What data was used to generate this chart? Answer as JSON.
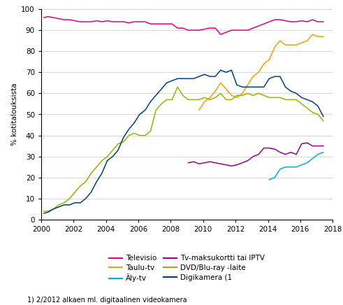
{
  "title": "",
  "ylabel": "% kotitalouksista",
  "xlabel": "",
  "footnote": "1) 2/2012 alkaen ml. digitaalinen videokamera",
  "ylim": [
    0,
    100
  ],
  "xlim": [
    2000,
    2018
  ],
  "xticks": [
    2000,
    2002,
    2004,
    2006,
    2008,
    2010,
    2012,
    2014,
    2016,
    2018
  ],
  "yticks": [
    0,
    10,
    20,
    30,
    40,
    50,
    60,
    70,
    80,
    90,
    100
  ],
  "series": {
    "Televisio": {
      "color": "#e8007f",
      "x": [
        2000.17,
        2000.42,
        2000.75,
        2001.08,
        2001.42,
        2001.75,
        2002.08,
        2002.42,
        2002.75,
        2003.08,
        2003.42,
        2003.75,
        2004.08,
        2004.42,
        2004.75,
        2005.08,
        2005.42,
        2005.75,
        2006.08,
        2006.42,
        2006.75,
        2007.08,
        2007.42,
        2007.75,
        2008.08,
        2008.42,
        2008.75,
        2009.08,
        2009.42,
        2009.75,
        2010.08,
        2010.42,
        2010.75,
        2011.08,
        2011.42,
        2011.75,
        2012.08,
        2012.42,
        2012.75,
        2013.08,
        2013.42,
        2013.75,
        2014.08,
        2014.42,
        2014.75,
        2015.08,
        2015.42,
        2015.75,
        2016.08,
        2016.42,
        2016.75,
        2017.08,
        2017.42
      ],
      "y": [
        96,
        96.5,
        96,
        95.5,
        95,
        95,
        94.5,
        94,
        94,
        94,
        94.5,
        94,
        94.5,
        94,
        94,
        94,
        93.5,
        94,
        94,
        94,
        93,
        93,
        93,
        93,
        93,
        91,
        91,
        90,
        90,
        90,
        90.5,
        91,
        91,
        88,
        89,
        90,
        90,
        90,
        90,
        91,
        92,
        93,
        94,
        95,
        95,
        94.5,
        94,
        94,
        94.5,
        94,
        95,
        94,
        94
      ]
    },
    "Taulu-tv": {
      "color": "#f4a000",
      "x": [
        2009.75,
        2010.08,
        2010.42,
        2010.75,
        2011.08,
        2011.42,
        2011.75,
        2012.08,
        2012.42,
        2012.75,
        2013.08,
        2013.42,
        2013.75,
        2014.08,
        2014.42,
        2014.75,
        2015.08,
        2015.42,
        2015.75,
        2016.08,
        2016.42,
        2016.75,
        2017.08,
        2017.42
      ],
      "y": [
        52,
        56,
        58,
        61,
        65,
        62,
        59,
        58,
        60,
        64,
        68,
        70,
        74,
        76,
        82,
        85,
        83,
        83,
        83,
        84,
        85,
        88,
        87,
        87
      ]
    },
    "Äly-tv": {
      "color": "#00b4c8",
      "x": [
        2014.08,
        2014.42,
        2014.75,
        2015.08,
        2015.42,
        2015.75,
        2016.08,
        2016.42,
        2016.75,
        2017.08,
        2017.42
      ],
      "y": [
        19,
        20,
        24,
        25,
        25,
        25,
        26,
        27,
        29,
        31,
        32
      ]
    },
    "Tv-maksukortti tai IPTV": {
      "color": "#9b0090",
      "x": [
        2009.08,
        2009.42,
        2009.75,
        2010.08,
        2010.42,
        2010.75,
        2011.08,
        2011.42,
        2011.75,
        2012.08,
        2012.42,
        2012.75,
        2013.08,
        2013.42,
        2013.75,
        2014.08,
        2014.42,
        2014.75,
        2015.08,
        2015.42,
        2015.75,
        2016.08,
        2016.42,
        2016.75,
        2017.08,
        2017.42
      ],
      "y": [
        27,
        27.5,
        26.5,
        27,
        27.5,
        27,
        26.5,
        26,
        25.5,
        26,
        27,
        28,
        30,
        31,
        34,
        34,
        33.5,
        32,
        31,
        32,
        31,
        36,
        36.5,
        35,
        35,
        35
      ]
    },
    "DVD/Blu-ray -laite": {
      "color": "#96b400",
      "x": [
        2000.17,
        2000.42,
        2000.75,
        2001.08,
        2001.42,
        2001.75,
        2002.08,
        2002.42,
        2002.75,
        2003.08,
        2003.42,
        2003.75,
        2004.08,
        2004.42,
        2004.75,
        2005.08,
        2005.42,
        2005.75,
        2006.08,
        2006.42,
        2006.75,
        2007.08,
        2007.42,
        2007.75,
        2008.08,
        2008.42,
        2008.75,
        2009.08,
        2009.42,
        2009.75,
        2010.08,
        2010.42,
        2010.75,
        2011.08,
        2011.42,
        2011.75,
        2012.08,
        2012.42,
        2012.75,
        2013.08,
        2013.42,
        2013.75,
        2014.08,
        2014.42,
        2014.75,
        2015.08,
        2015.42,
        2015.75,
        2016.08,
        2016.42,
        2016.75,
        2017.08,
        2017.42
      ],
      "y": [
        4,
        4,
        5,
        7,
        8,
        10,
        13,
        16,
        18,
        22,
        25,
        28,
        30,
        33,
        36,
        37,
        40,
        41,
        40,
        40,
        42,
        52,
        55,
        57,
        57,
        63,
        59,
        57,
        57,
        57,
        58,
        57,
        58,
        60,
        57,
        57,
        59,
        59,
        60,
        59,
        60,
        59,
        58,
        58,
        58,
        57,
        57,
        57,
        55,
        53,
        51,
        50,
        47
      ]
    },
    "Digikamera (1": {
      "color": "#003f7f",
      "x": [
        2000.17,
        2000.42,
        2000.75,
        2001.08,
        2001.42,
        2001.75,
        2002.08,
        2002.42,
        2002.75,
        2003.08,
        2003.42,
        2003.75,
        2004.08,
        2004.42,
        2004.75,
        2005.08,
        2005.42,
        2005.75,
        2006.08,
        2006.42,
        2006.75,
        2007.08,
        2007.42,
        2007.75,
        2008.08,
        2008.42,
        2008.75,
        2009.08,
        2009.42,
        2009.75,
        2010.08,
        2010.42,
        2010.75,
        2011.08,
        2011.42,
        2011.75,
        2012.08,
        2012.42,
        2012.75,
        2013.08,
        2013.42,
        2013.75,
        2014.08,
        2014.42,
        2014.75,
        2015.08,
        2015.42,
        2015.75,
        2016.08,
        2016.42,
        2016.75,
        2017.08,
        2017.42
      ],
      "y": [
        3,
        3.5,
        5,
        6,
        7,
        7,
        8,
        8,
        10,
        13,
        18,
        22,
        28,
        30,
        33,
        39,
        43,
        46,
        50,
        52,
        56,
        59,
        62,
        65,
        66,
        67,
        67,
        67,
        67,
        68,
        69,
        68,
        68,
        71,
        70,
        71,
        64,
        63,
        63,
        63,
        63,
        63,
        67,
        68,
        68,
        63,
        61,
        60,
        58,
        57,
        56,
        54,
        49
      ]
    }
  },
  "legend_order": [
    "Televisio",
    "Taulu-tv",
    "Äly-tv",
    "Tv-maksukortti tai IPTV",
    "DVD/Blu-ray -laite",
    "Digikamera (1"
  ]
}
